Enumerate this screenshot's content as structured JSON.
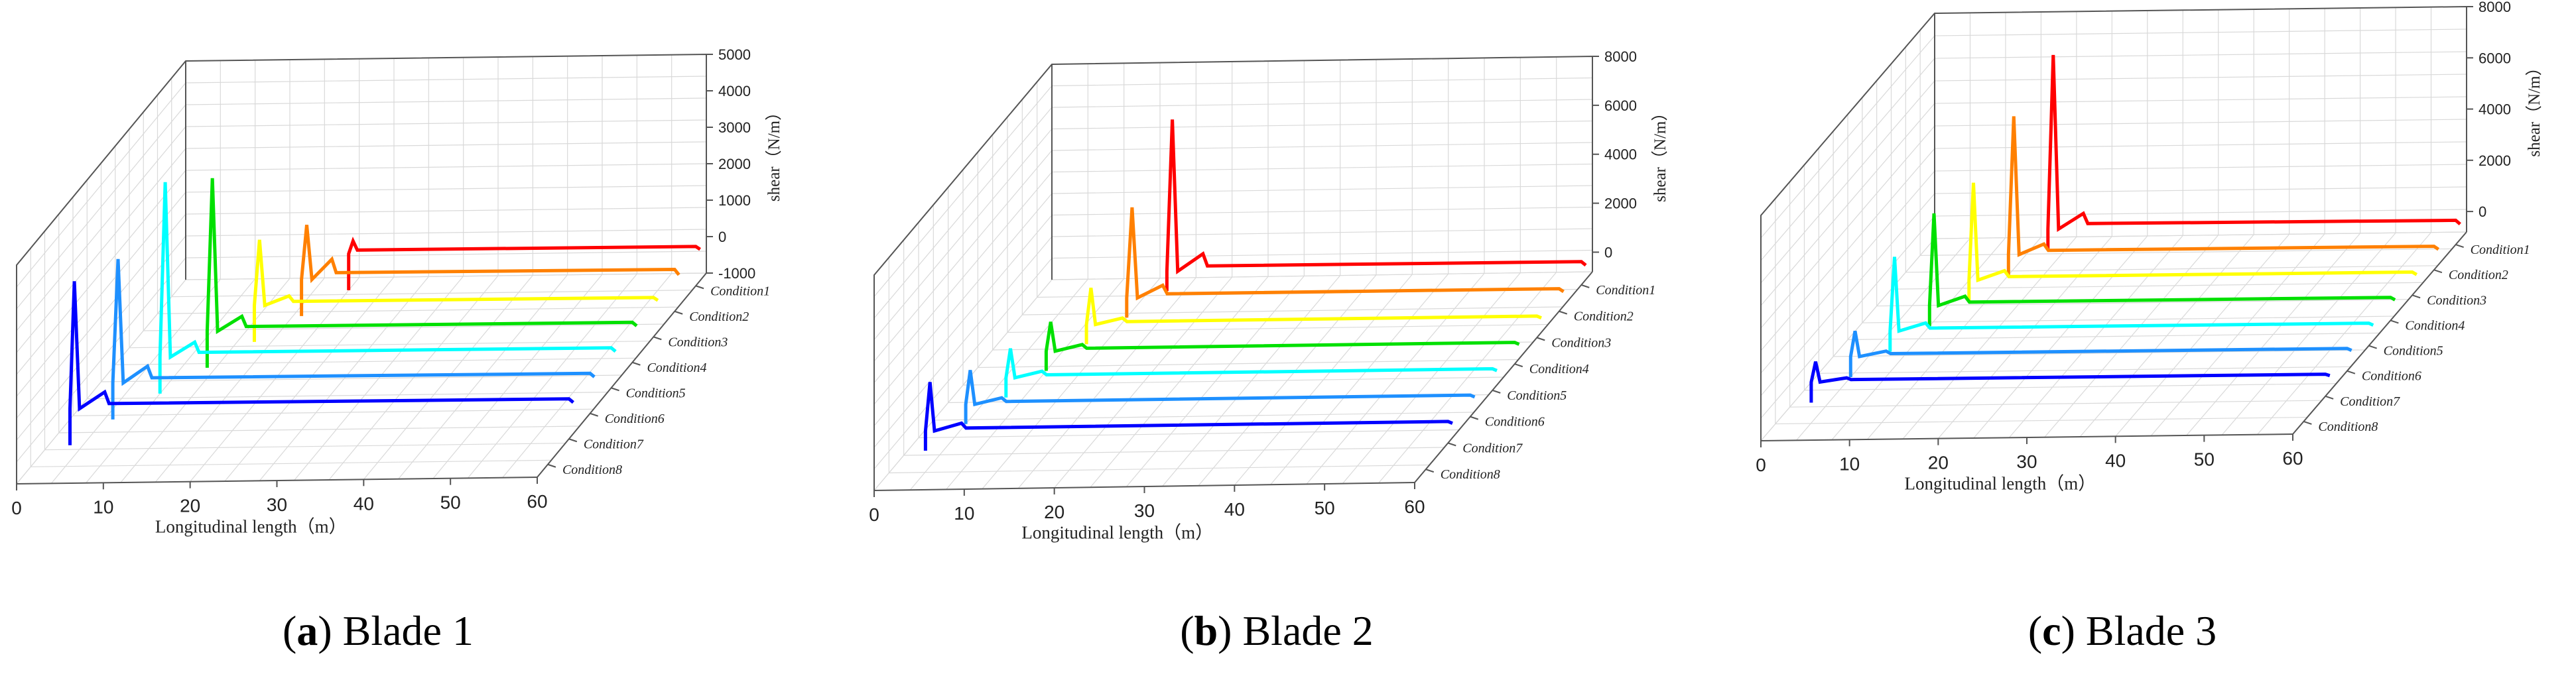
{
  "chart_data": [
    {
      "type": "line",
      "panel": "a",
      "caption": {
        "letter": "a",
        "text": " Blade 1"
      },
      "xlabel": "Longitudinal length（m）",
      "zlabel": "shear（N/m）",
      "xlim": [
        0,
        60
      ],
      "zlim": [
        -1000,
        5000
      ],
      "x_ticks": [
        "0",
        "10",
        "20",
        "30",
        "40",
        "50",
        "60"
      ],
      "z_ticks": [
        "-1000",
        "0",
        "1000",
        "2000",
        "3000",
        "4000",
        "5000"
      ],
      "series": [
        {
          "name": "Condition1",
          "color": "#ff0000",
          "x": [
            20,
            20.5,
            21,
            60,
            60.5
          ],
          "values": [
            0,
            350,
            100,
            80,
            0
          ]
        },
        {
          "name": "Condition2",
          "color": "#ff8000",
          "x": [
            17,
            17.6,
            18.2,
            20.5,
            21,
            60,
            60.5
          ],
          "values": [
            0,
            1500,
            0,
            550,
            180,
            150,
            0
          ]
        },
        {
          "name": "Condition3",
          "color": "#ffff00",
          "x": [
            14,
            14.6,
            15.2,
            18,
            18.5,
            60,
            60.5
          ],
          "values": [
            0,
            1800,
            0,
            250,
            100,
            80,
            0
          ]
        },
        {
          "name": "Condition4",
          "color": "#00e000",
          "x": [
            11,
            11.6,
            12.2,
            15,
            15.5,
            60,
            60.5
          ],
          "values": [
            0,
            4200,
            0,
            400,
            120,
            100,
            0
          ]
        },
        {
          "name": "Condition5",
          "color": "#00ffff",
          "x": [
            8,
            8.6,
            9.2,
            12,
            12.5,
            60,
            60.5
          ],
          "values": [
            0,
            4800,
            0,
            400,
            120,
            100,
            0
          ]
        },
        {
          "name": "Condition6",
          "color": "#1e90ff",
          "x": [
            5,
            5.6,
            6.2,
            9,
            9.5,
            60,
            60.5
          ],
          "values": [
            0,
            3400,
            0,
            450,
            130,
            100,
            0
          ]
        },
        {
          "name": "Condition7",
          "color": "#0000ff",
          "x": [
            2.5,
            3,
            3.6,
            6.5,
            7,
            60,
            60.5
          ],
          "values": [
            0,
            3500,
            0,
            450,
            130,
            100,
            0
          ]
        }
      ],
      "category_labels": [
        "Condition1",
        "Condition2",
        "Condition3",
        "Condition4",
        "Condition5",
        "Condition6",
        "Condition7",
        "Condition8"
      ]
    },
    {
      "type": "line",
      "panel": "b",
      "caption": {
        "letter": "b",
        "text": " Blade 2"
      },
      "xlabel": "Longitudinal length（m）",
      "zlabel": "shear（N/m）",
      "xlim": [
        0,
        60
      ],
      "zlim": [
        -800,
        8000
      ],
      "x_ticks": [
        "0",
        "10",
        "20",
        "30",
        "40",
        "50",
        "60"
      ],
      "z_ticks": [
        "0",
        "2000",
        "4000",
        "6000",
        "8000"
      ],
      "series": [
        {
          "name": "Condition1",
          "color": "#ff0000",
          "x": [
            14,
            14.6,
            15.2,
            18,
            18.5,
            60,
            60.5
          ],
          "values": [
            0,
            6200,
            0,
            700,
            200,
            150,
            0
          ]
        },
        {
          "name": "Condition2",
          "color": "#ff8000",
          "x": [
            12,
            12.6,
            13.2,
            16,
            16.5,
            60,
            60.5
          ],
          "values": [
            0,
            3700,
            0,
            500,
            150,
            120,
            0
          ]
        },
        {
          "name": "Condition3",
          "color": "#ffff00",
          "x": [
            10,
            10.5,
            11,
            14,
            14.5,
            60,
            60.5
          ],
          "values": [
            0,
            1500,
            0,
            250,
            100,
            80,
            0
          ]
        },
        {
          "name": "Condition4",
          "color": "#00e000",
          "x": [
            8,
            8.5,
            9,
            12,
            12.5,
            60,
            60.5
          ],
          "values": [
            0,
            1200,
            0,
            250,
            100,
            80,
            0
          ]
        },
        {
          "name": "Condition5",
          "color": "#00ffff",
          "x": [
            6,
            6.5,
            7,
            10,
            10.5,
            60,
            60.5
          ],
          "values": [
            0,
            1200,
            0,
            250,
            100,
            80,
            0
          ]
        },
        {
          "name": "Condition6",
          "color": "#1e90ff",
          "x": [
            4,
            4.5,
            5,
            8,
            8.5,
            60,
            60.5
          ],
          "values": [
            0,
            1400,
            0,
            250,
            100,
            80,
            0
          ]
        },
        {
          "name": "Condition7",
          "color": "#0000ff",
          "x": [
            2,
            2.5,
            3,
            6,
            6.5,
            60,
            60.5
          ],
          "values": [
            0,
            2000,
            0,
            300,
            100,
            80,
            0
          ]
        }
      ],
      "category_labels": [
        "Condition1",
        "Condition2",
        "Condition3",
        "Condition4",
        "Condition5",
        "Condition6",
        "Condition7",
        "Condition8"
      ]
    },
    {
      "type": "line",
      "panel": "c",
      "caption": {
        "letter": "c",
        "text": " Blade 3"
      },
      "xlabel": "Longitudinal length（m）",
      "zlabel": "shear（N/m）",
      "xlim": [
        0,
        60
      ],
      "zlim": [
        -800,
        8000
      ],
      "x_ticks": [
        "0",
        "10",
        "20",
        "30",
        "40",
        "50",
        "60"
      ],
      "z_ticks": [
        "0",
        "2000",
        "4000",
        "6000",
        "8000"
      ],
      "series": [
        {
          "name": "Condition1",
          "color": "#ff0000",
          "x": [
            14,
            14.6,
            15.2,
            18,
            18.5,
            60,
            60.5
          ],
          "values": [
            0,
            6800,
            0,
            600,
            200,
            150,
            0
          ]
        },
        {
          "name": "Condition2",
          "color": "#ff8000",
          "x": [
            12,
            12.6,
            13.2,
            16,
            16.5,
            60,
            60.5
          ],
          "values": [
            0,
            5400,
            0,
            400,
            150,
            120,
            0
          ]
        },
        {
          "name": "Condition3",
          "color": "#ffff00",
          "x": [
            10,
            10.5,
            11,
            14,
            14.5,
            60,
            60.5
          ],
          "values": [
            0,
            3800,
            0,
            350,
            120,
            100,
            0
          ]
        },
        {
          "name": "Condition4",
          "color": "#00e000",
          "x": [
            8,
            8.5,
            9,
            12,
            12.5,
            60,
            60.5
          ],
          "values": [
            0,
            3600,
            0,
            350,
            120,
            100,
            0
          ]
        },
        {
          "name": "Condition5",
          "color": "#00ffff",
          "x": [
            6,
            6.5,
            7,
            10,
            10.5,
            60,
            60.5
          ],
          "values": [
            0,
            2900,
            0,
            300,
            100,
            80,
            0
          ]
        },
        {
          "name": "Condition6",
          "color": "#1e90ff",
          "x": [
            4,
            4.5,
            5,
            8,
            8.5,
            60,
            60.5
          ],
          "values": [
            0,
            1000,
            0,
            200,
            100,
            80,
            0
          ]
        },
        {
          "name": "Condition7",
          "color": "#0000ff",
          "x": [
            2,
            2.5,
            3,
            6,
            6.5,
            60,
            60.5
          ],
          "values": [
            0,
            800,
            0,
            150,
            80,
            60,
            0
          ]
        }
      ],
      "category_labels": [
        "Condition1",
        "Condition2",
        "Condition3",
        "Condition4",
        "Condition5",
        "Condition6",
        "Condition7",
        "Condition8"
      ]
    }
  ]
}
